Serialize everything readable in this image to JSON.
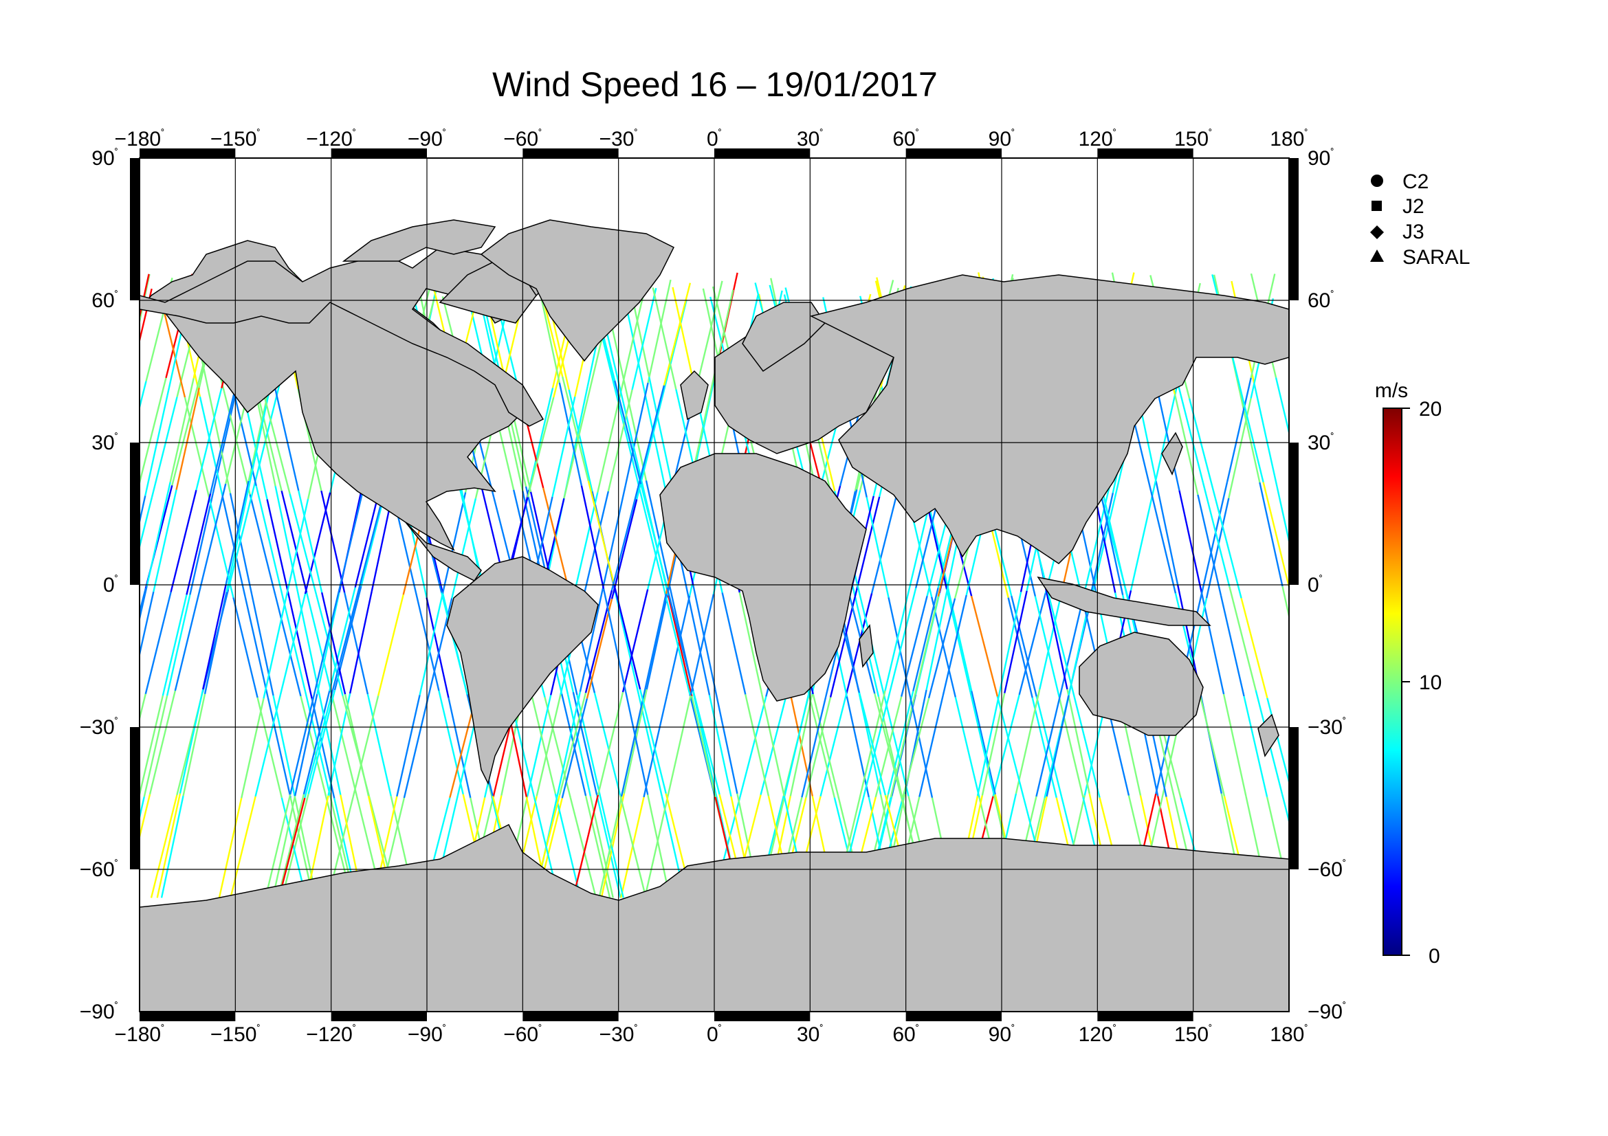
{
  "title": "Wind Speed 16 – 19/01/2017",
  "map": {
    "projection": "equirectangular",
    "lon_range": [
      -180,
      180
    ],
    "lat_range": [
      -90,
      90
    ],
    "grid": true,
    "land_color": "#bebebe",
    "ocean_color": "#ffffff",
    "lon_ticks": [
      "−180",
      "−150",
      "−120",
      "−90",
      "−60",
      "−30",
      "0",
      "30",
      "60",
      "90",
      "120",
      "150",
      "180"
    ],
    "lat_ticks": [
      "90",
      "60",
      "30",
      "0",
      "−30",
      "−60",
      "−90"
    ],
    "degree_symbol": "˚"
  },
  "legend": {
    "items": [
      {
        "label": "C2",
        "symbol": "circle"
      },
      {
        "label": "J2",
        "symbol": "square"
      },
      {
        "label": "J3",
        "symbol": "diamond"
      },
      {
        "label": "SARAL",
        "symbol": "triangle"
      }
    ]
  },
  "colorbar": {
    "unit": "m/s",
    "min": 0,
    "max": 20,
    "tick_labels": [
      "20",
      "10",
      "0"
    ],
    "colors": [
      "#00007f",
      "#0000ff",
      "#007fff",
      "#00ffff",
      "#7fff7f",
      "#ffff00",
      "#ff7f00",
      "#ff0000",
      "#7f0000"
    ]
  },
  "chart_data": {
    "type": "scatter",
    "title": "Wind Speed 16 – 19/01/2017",
    "value_unit": "m/s",
    "value_range": [
      0,
      20
    ],
    "x_range": [
      -180,
      180
    ],
    "y_range": [
      -90,
      90
    ],
    "series": [
      {
        "name": "C2"
      },
      {
        "name": "J2"
      },
      {
        "name": "J3"
      },
      {
        "name": "SARAL"
      }
    ]
  }
}
